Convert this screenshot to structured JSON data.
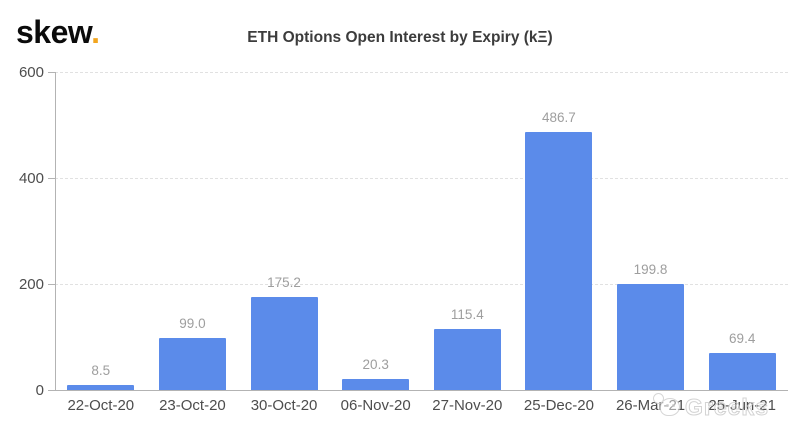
{
  "brand": {
    "logo_text": "skew",
    "logo_dot": ".",
    "logo_dot_color": "#F2A51E"
  },
  "chart_data": {
    "type": "bar",
    "title": "ETH Options Open Interest by Expiry (kΞ)",
    "categories": [
      "22-Oct-20",
      "23-Oct-20",
      "30-Oct-20",
      "06-Nov-20",
      "27-Nov-20",
      "25-Dec-20",
      "26-Mar-21",
      "25-Jun-21"
    ],
    "values": [
      8.5,
      99.0,
      175.2,
      20.3,
      115.4,
      486.7,
      199.8,
      69.4
    ],
    "value_labels": [
      "8.5",
      "99.0",
      "175.2",
      "20.3",
      "115.4",
      "486.7",
      "199.8",
      "69.4"
    ],
    "xlabel": "",
    "ylabel": "",
    "ylim": [
      0,
      600
    ],
    "yticks": [
      0,
      200,
      400,
      600
    ],
    "bar_color": "#5B8BEA",
    "grid": "horizontal-dashed",
    "legend_position": "none"
  },
  "watermark": {
    "icon": "smiley-chat-emoji",
    "text": "Greeks"
  }
}
